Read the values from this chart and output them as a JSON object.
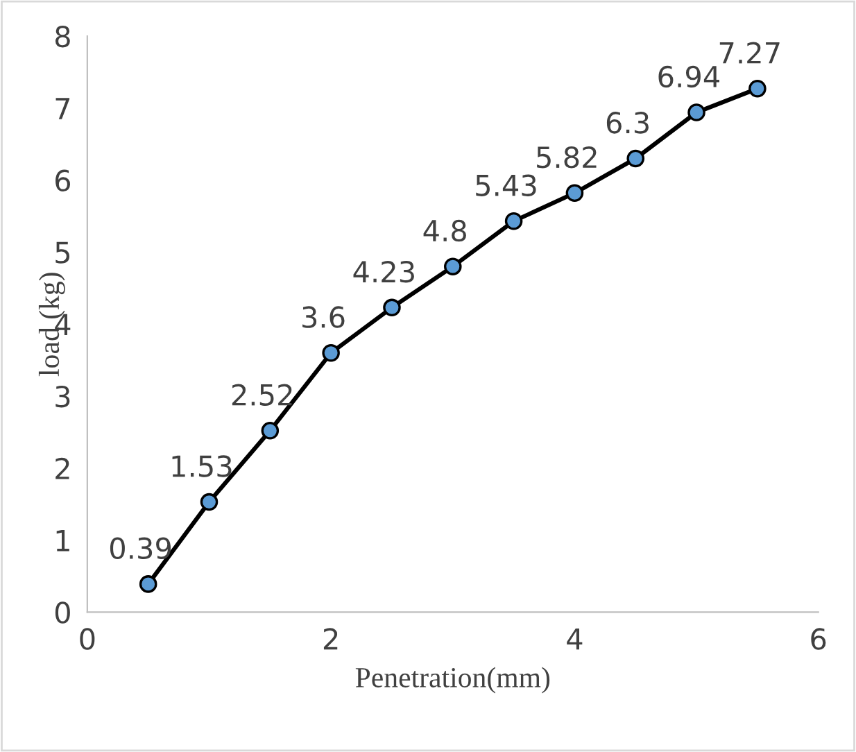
{
  "chart_data": {
    "type": "line",
    "xlabel": "Penetration(mm)",
    "ylabel": "load (kg)",
    "x": [
      0.5,
      1,
      1.5,
      2,
      2.5,
      3,
      3.5,
      4,
      4.5,
      5,
      5.5
    ],
    "series": [
      {
        "color": "#5b9bd5",
        "values": [
          0.39,
          1.53,
          2.52,
          3.6,
          4.23,
          4.8,
          5.43,
          5.82,
          6.3,
          6.94,
          7.27
        ]
      }
    ],
    "xlim": [
      0,
      6
    ],
    "xticks": [
      0,
      2,
      4,
      6
    ],
    "ylim": [
      0,
      8
    ],
    "yticks": [
      0,
      1,
      2,
      3,
      4,
      5,
      6,
      7,
      8
    ],
    "grid": false,
    "legend": false,
    "marker": "circle",
    "line_style": "solid",
    "data_labels": true
  }
}
